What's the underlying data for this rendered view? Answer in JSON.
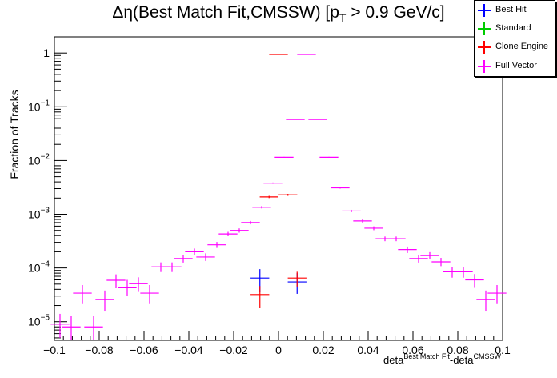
{
  "title": {
    "prefix": "Δη(Best Match Fit,CMSSW) [p",
    "subscript": "T",
    "suffix": " > 0.9 GeV/c]"
  },
  "legend": [
    {
      "label": "Best Hit",
      "color": "#0000ff"
    },
    {
      "label": "Standard",
      "color": "#00cc00"
    },
    {
      "label": "Clone Engine",
      "color": "#ff0000"
    },
    {
      "label": "Full Vector",
      "color": "#ff00ff"
    }
  ],
  "axes": {
    "ylabel": "Fraction of Tracks",
    "xlabel_main": "deta",
    "xlabel_sup1": "Best Match Fit",
    "xlabel_mid": "-deta",
    "xlabel_sup2": "CMSSW"
  },
  "chart_data": {
    "type": "scatter",
    "x_range": [
      -0.1,
      0.1
    ],
    "y_log": true,
    "y_range": [
      4.5e-06,
      2.0
    ],
    "bin_width": 0.0083333,
    "x_ticks": [
      {
        "value": -0.1,
        "label": "−0.1"
      },
      {
        "value": -0.08,
        "label": "−0.08"
      },
      {
        "value": -0.06,
        "label": "−0.06"
      },
      {
        "value": -0.04,
        "label": "−0.04"
      },
      {
        "value": -0.02,
        "label": "−0.02"
      },
      {
        "value": 0,
        "label": "0"
      },
      {
        "value": 0.02,
        "label": "0.02"
      },
      {
        "value": 0.04,
        "label": "0.04"
      },
      {
        "value": 0.06,
        "label": "0.06"
      },
      {
        "value": 0.08,
        "label": "0.08"
      },
      {
        "value": 0.1,
        "label": "0.1"
      }
    ],
    "y_ticks": [
      {
        "value": 1e-05,
        "base": "10",
        "exp": "−5"
      },
      {
        "value": 0.0001,
        "base": "10",
        "exp": "−4"
      },
      {
        "value": 0.001,
        "base": "10",
        "exp": "−3"
      },
      {
        "value": 0.01,
        "base": "10",
        "exp": "−2"
      },
      {
        "value": 0.1,
        "base": "10",
        "exp": "−1"
      },
      {
        "value": 1,
        "base": "1",
        "exp": ""
      }
    ],
    "series": [
      {
        "name": "Full Vector",
        "color": "#ff00ff",
        "points": [
          {
            "x": -0.0975,
            "y": 9e-06,
            "lo": 5e-06,
            "hi": 1.4e-05
          },
          {
            "x": -0.0925,
            "y": 8e-06,
            "lo": 4.5e-06,
            "hi": 1.3e-05
          },
          {
            "x": -0.0875,
            "y": 3.4e-05,
            "lo": 2.2e-05,
            "hi": 4.8e-05
          },
          {
            "x": -0.0825,
            "y": 8e-06,
            "lo": 4.5e-06,
            "hi": 1.3e-05
          },
          {
            "x": -0.0775,
            "y": 2.6e-05,
            "lo": 1.6e-05,
            "hi": 3.8e-05
          },
          {
            "x": -0.0725,
            "y": 5.9e-05,
            "lo": 4.3e-05,
            "hi": 7.6e-05
          },
          {
            "x": -0.0675,
            "y": 4.4e-05,
            "lo": 3e-05,
            "hi": 6e-05
          },
          {
            "x": -0.0625,
            "y": 5.1e-05,
            "lo": 3.7e-05,
            "hi": 6.7e-05
          },
          {
            "x": -0.0575,
            "y": 3.4e-05,
            "lo": 2.2e-05,
            "hi": 4.8e-05
          },
          {
            "x": -0.0525,
            "y": 0.000105,
            "lo": 8.4e-05,
            "hi": 0.000127
          },
          {
            "x": -0.0475,
            "y": 0.000105,
            "lo": 8.4e-05,
            "hi": 0.000127
          },
          {
            "x": -0.0425,
            "y": 0.00015,
            "lo": 0.000126,
            "hi": 0.000176
          },
          {
            "x": -0.0375,
            "y": 0.0002,
            "lo": 0.000172,
            "hi": 0.00023
          },
          {
            "x": -0.0325,
            "y": 0.00016,
            "lo": 0.000135,
            "hi": 0.000187
          },
          {
            "x": -0.0275,
            "y": 0.00027,
            "lo": 0.000236,
            "hi": 0.000305
          },
          {
            "x": -0.0225,
            "y": 0.00043,
            "lo": 0.00039,
            "hi": 0.00047
          },
          {
            "x": -0.0175,
            "y": 0.0005,
            "lo": 0.000455,
            "hi": 0.000545
          },
          {
            "x": -0.0125,
            "y": 0.0007,
            "lo": 0.00065,
            "hi": 0.00075
          },
          {
            "x": -0.0075,
            "y": 0.00135,
            "lo": 0.00128,
            "hi": 0.00142
          },
          {
            "x": -0.0025,
            "y": 0.0038,
            "lo": 0.0037,
            "hi": 0.0039
          },
          {
            "x": 0.0025,
            "y": 0.0115,
            "lo": 0.0113,
            "hi": 0.0117
          },
          {
            "x": 0.0075,
            "y": 0.058,
            "lo": 0.0575,
            "hi": 0.0585
          },
          {
            "x": 0.0125,
            "y": 0.94,
            "lo": 0.93,
            "hi": 0.95
          },
          {
            "x": 0.0175,
            "y": 0.058,
            "lo": 0.0575,
            "hi": 0.0585
          },
          {
            "x": 0.0225,
            "y": 0.0115,
            "lo": 0.0113,
            "hi": 0.0117
          },
          {
            "x": 0.0275,
            "y": 0.0031,
            "lo": 0.003,
            "hi": 0.0032
          },
          {
            "x": 0.0325,
            "y": 0.00115,
            "lo": 0.00109,
            "hi": 0.00121
          },
          {
            "x": 0.0375,
            "y": 0.00075,
            "lo": 0.0007,
            "hi": 0.0008
          },
          {
            "x": 0.0425,
            "y": 0.00055,
            "lo": 0.000505,
            "hi": 0.000595
          },
          {
            "x": 0.0475,
            "y": 0.00035,
            "lo": 0.000315,
            "hi": 0.000385
          },
          {
            "x": 0.0525,
            "y": 0.00035,
            "lo": 0.000315,
            "hi": 0.000385
          },
          {
            "x": 0.0575,
            "y": 0.00022,
            "lo": 0.00019,
            "hi": 0.00025
          },
          {
            "x": 0.0625,
            "y": 0.00015,
            "lo": 0.000126,
            "hi": 0.000176
          },
          {
            "x": 0.0675,
            "y": 0.00017,
            "lo": 0.000145,
            "hi": 0.000197
          },
          {
            "x": 0.0725,
            "y": 0.00013,
            "lo": 0.000108,
            "hi": 0.000154
          },
          {
            "x": 0.0775,
            "y": 8.5e-05,
            "lo": 6.6e-05,
            "hi": 0.000105
          },
          {
            "x": 0.0825,
            "y": 8.5e-05,
            "lo": 6.6e-05,
            "hi": 0.000105
          },
          {
            "x": 0.0875,
            "y": 6e-05,
            "lo": 4.4e-05,
            "hi": 7.7e-05
          },
          {
            "x": 0.0925,
            "y": 2.6e-05,
            "lo": 1.6e-05,
            "hi": 3.8e-05
          },
          {
            "x": 0.0975,
            "y": 3.4e-05,
            "lo": 2.2e-05,
            "hi": 4.8e-05
          }
        ]
      },
      {
        "name": "Best Hit",
        "color": "#0000ff",
        "points": [
          {
            "x": -0.0083,
            "y": 6.5e-05,
            "lo": 3.6e-05,
            "hi": 9.5e-05
          },
          {
            "x": 0.0083,
            "y": 5.5e-05,
            "lo": 3.3e-05,
            "hi": 8e-05
          }
        ]
      },
      {
        "name": "Clone Engine",
        "color": "#ff0000",
        "points": [
          {
            "x": -0.0083,
            "y": 3.2e-05,
            "lo": 1.8e-05,
            "hi": 4.6e-05
          },
          {
            "x": 0.0083,
            "y": 6.5e-05,
            "lo": 4.5e-05,
            "hi": 8.5e-05
          },
          {
            "x": 0.0,
            "y": 0.94,
            "lo": 0.93,
            "hi": 0.95
          },
          {
            "x": -0.0042,
            "y": 0.0021,
            "lo": 0.002,
            "hi": 0.0022
          },
          {
            "x": 0.0042,
            "y": 0.0023,
            "lo": 0.0022,
            "hi": 0.0024
          }
        ]
      }
    ]
  }
}
